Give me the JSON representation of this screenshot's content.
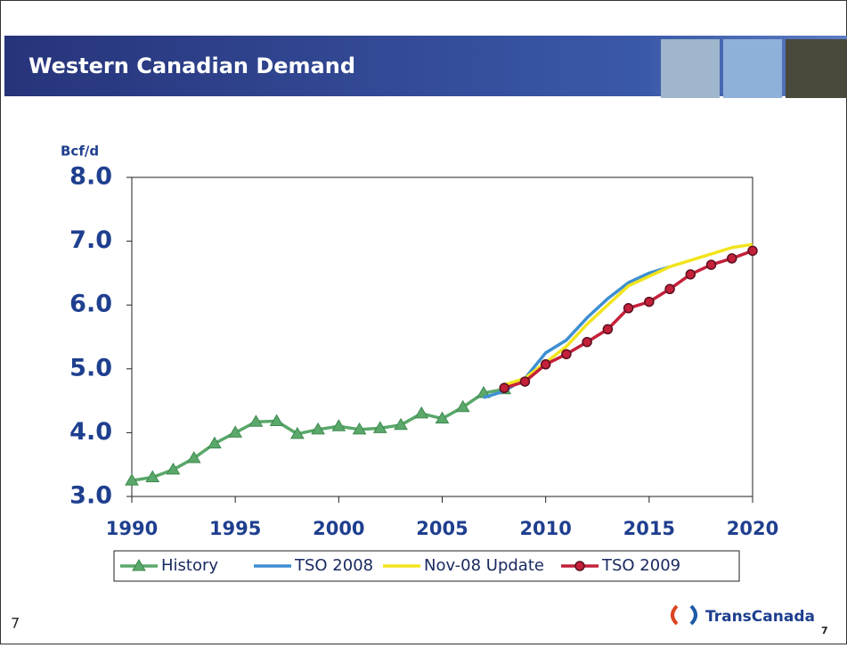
{
  "chart_data": {
    "type": "line",
    "title": "Western Canadian Demand",
    "ylabel": "Bcf/d",
    "x": [
      1990,
      1991,
      1992,
      1993,
      1994,
      1995,
      1996,
      1997,
      1998,
      1999,
      2000,
      2001,
      2002,
      2003,
      2004,
      2005,
      2006,
      2007,
      2008,
      2009,
      2010,
      2011,
      2012,
      2013,
      2014,
      2015,
      2016,
      2017,
      2018,
      2019,
      2020
    ],
    "series": [
      {
        "name": "History",
        "color": "#5aa86a",
        "marker": "triangle",
        "values": [
          3.25,
          3.3,
          3.42,
          3.6,
          3.83,
          4.0,
          4.17,
          4.18,
          3.98,
          4.05,
          4.1,
          4.05,
          4.07,
          4.12,
          4.3,
          4.22,
          4.4,
          4.62,
          4.68,
          null,
          null,
          null,
          null,
          null,
          null,
          null,
          null,
          null,
          null,
          null,
          null
        ]
      },
      {
        "name": "TSO 2008",
        "color": "#3d8fd1",
        "marker": "none",
        "values": [
          null,
          null,
          null,
          null,
          null,
          null,
          null,
          null,
          null,
          null,
          null,
          null,
          null,
          null,
          null,
          null,
          null,
          4.55,
          4.65,
          4.85,
          5.25,
          5.45,
          5.8,
          6.1,
          6.35,
          6.5,
          6.6,
          null,
          null,
          null,
          null
        ]
      },
      {
        "name": "Nov-08 Update",
        "color": "#f2e41e",
        "marker": "none",
        "values": [
          null,
          null,
          null,
          null,
          null,
          null,
          null,
          null,
          null,
          null,
          null,
          null,
          null,
          null,
          null,
          null,
          null,
          null,
          4.75,
          4.85,
          5.1,
          5.35,
          5.7,
          6.0,
          6.3,
          6.45,
          6.6,
          6.7,
          6.8,
          6.9,
          6.95
        ]
      },
      {
        "name": "TSO 2009",
        "color": "#c4203a",
        "marker": "circle",
        "values": [
          null,
          null,
          null,
          null,
          null,
          null,
          null,
          null,
          null,
          null,
          null,
          null,
          null,
          null,
          null,
          null,
          null,
          null,
          4.7,
          4.8,
          5.07,
          5.23,
          5.42,
          5.62,
          5.95,
          6.05,
          6.25,
          6.48,
          6.63,
          6.73,
          6.85
        ]
      }
    ],
    "xlim": [
      1990,
      2020
    ],
    "xticks": [
      1990,
      1995,
      2000,
      2005,
      2010,
      2015,
      2020
    ],
    "ylim": [
      3,
      8
    ],
    "yticks": [
      {
        "value": 3,
        "label": "3.0"
      },
      {
        "value": 4,
        "label": "4.0"
      },
      {
        "value": 5,
        "label": "5.0"
      },
      {
        "value": 6,
        "label": "6.0"
      },
      {
        "value": 7,
        "label": "7.0"
      },
      {
        "value": 8,
        "label": "8.0"
      }
    ],
    "grid": false,
    "legend": "bottom"
  },
  "footer": {
    "page_number": "7",
    "logo": "TransCanada",
    "corner_number": "7"
  }
}
